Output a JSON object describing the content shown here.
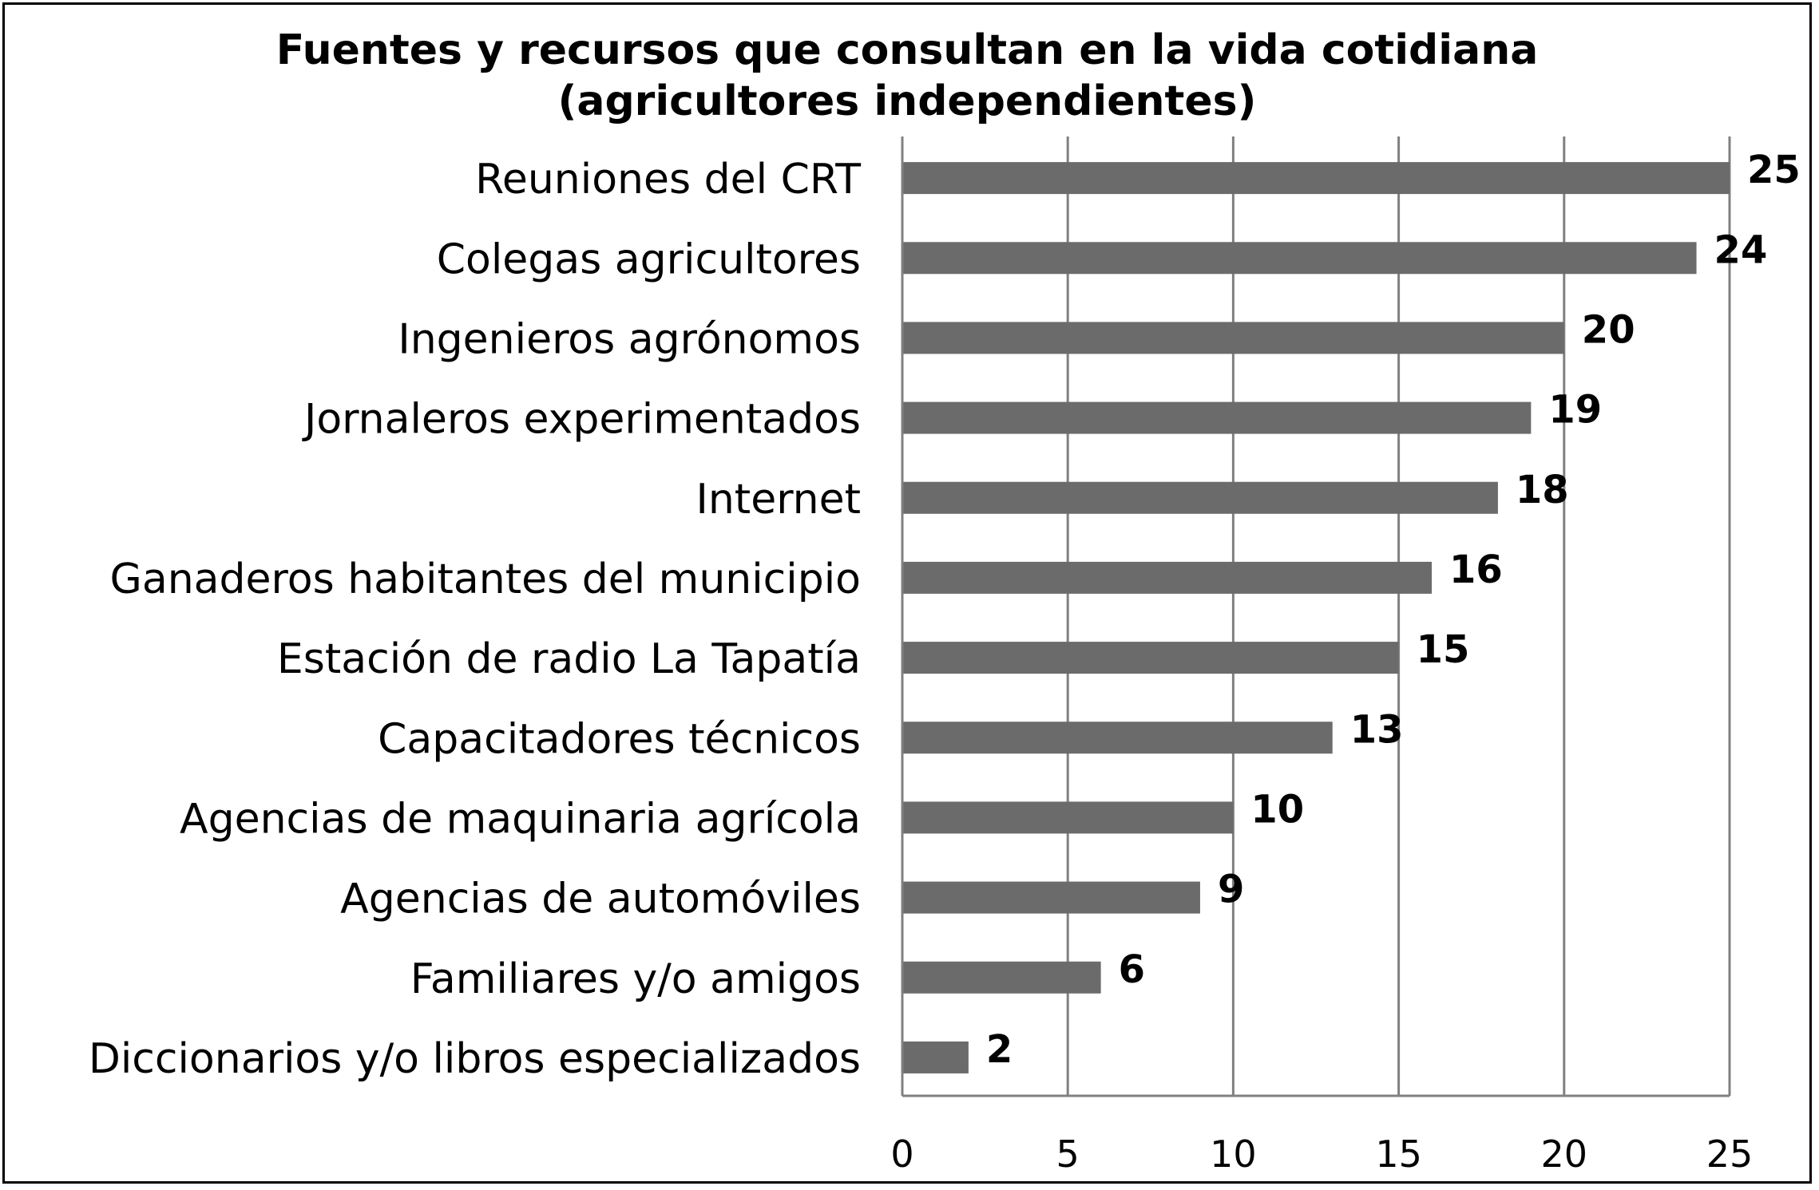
{
  "chart_data": {
    "type": "bar",
    "orientation": "horizontal",
    "title": [
      "Fuentes y recursos que consultan en la vida cotidiana",
      "(agricultores independientes)"
    ],
    "categories": [
      "Reuniones del CRT",
      "Colegas agricultores",
      "Ingenieros agrónomos",
      "Jornaleros experimentados",
      "Internet",
      "Ganaderos habitantes del municipio",
      "Estación de radio La Tapatía",
      "Capacitadores técnicos",
      "Agencias de maquinaria agrícola",
      "Agencias de automóviles",
      "Familiares y/o amigos",
      "Diccionarios y/o libros especializados"
    ],
    "values": [
      25,
      24,
      20,
      19,
      18,
      16,
      15,
      13,
      10,
      9,
      6,
      2
    ],
    "xlim": [
      0,
      25
    ],
    "xticks": [
      0,
      5,
      10,
      15,
      20,
      25
    ],
    "xlabel": "",
    "ylabel": "",
    "grid": "vertical",
    "legend": "none",
    "colors": {
      "bar": "#6b6b6b",
      "grid": "#808080",
      "axis": "#808080",
      "text": "#000000"
    }
  }
}
